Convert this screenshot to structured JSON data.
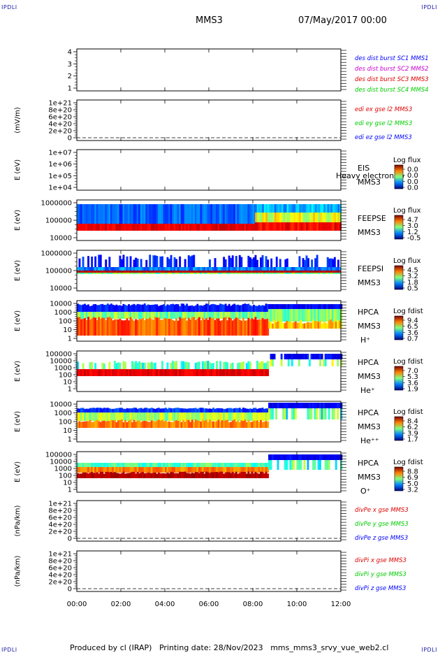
{
  "header": {
    "corner_label": "IPDLI",
    "title": "MMS3",
    "date": "07/May/2017 00:00"
  },
  "footer": {
    "produced_by": "Produced by cl (IRAP)",
    "printing_date": "Printing date: 28/Nov/2023",
    "script": "mms_mms3_srvy_vue_web2.cl"
  },
  "colors": {
    "mms1": "#0000ff",
    "mms2": "#cc00cc",
    "mms3": "#dd0000",
    "mms4": "#00cc00",
    "dashed_zero": "#000000"
  },
  "chart_data": {
    "type": "heatmap",
    "x_ticks": [
      "00:00",
      "02:00",
      "04:00",
      "06:00",
      "08:00",
      "10:00",
      "12:00"
    ],
    "xlim_hours": [
      0,
      12
    ],
    "panels": [
      {
        "id": "des-dist",
        "ylabel": "",
        "ytick_labels": [
          "4",
          "3",
          "2",
          "1"
        ],
        "ylim": [
          0.5,
          4.5
        ],
        "legend": [
          {
            "text": "des dist burst SC1 MMS1",
            "color": "#0000ff"
          },
          {
            "text": "des dist burst SC2 MMS2",
            "color": "#cc00cc"
          },
          {
            "text": "des dist burst SC3 MMS3",
            "color": "#dd0000"
          },
          {
            "text": "des dist burst SC4 MMS4",
            "color": "#00cc00"
          }
        ]
      },
      {
        "id": "edi",
        "ylabel": "(mV/m)",
        "ytick_labels": [
          "1e+21",
          "8e+20",
          "6e+20",
          "4e+20",
          "2e+20",
          "0"
        ],
        "ylim": [
          0,
          1e+21
        ],
        "legend": [
          {
            "text": "edi ex gse l2 MMS3",
            "color": "#dd0000"
          },
          {
            "text": "edi ey gse l2 MMS3",
            "color": "#00cc00"
          },
          {
            "text": "edi ez gse l2 MMS3",
            "color": "#0000ff"
          }
        ]
      },
      {
        "id": "eis",
        "ylabel": "E (eV)",
        "ytick_labels": [
          "1e+07",
          "1e+06",
          "1e+05",
          "1e+04"
        ],
        "ylim": [
          10000,
          10000000
        ],
        "instrument": [
          "EIS",
          "MMS3"
        ],
        "overlay_text": "Heavy electron to",
        "colorbar": {
          "title": "Log flux",
          "ticks": [
            "0.0",
            "0.0",
            "0.0",
            "0.0"
          ]
        }
      },
      {
        "id": "feeps-e",
        "ylabel": "E (eV)",
        "ytick_labels": [
          "1000000",
          "100000",
          "10000"
        ],
        "ylim": [
          10000,
          1000000
        ],
        "instrument": [
          "FEEPSE",
          "MMS3"
        ],
        "colorbar": {
          "title": "Log flux",
          "ticks": [
            "4.7",
            "3.0",
            "1.2",
            "-0.5"
          ]
        }
      },
      {
        "id": "feeps-i",
        "ylabel": "E (eV)",
        "ytick_labels": [
          "1000000",
          "100000",
          "10000"
        ],
        "ylim": [
          10000,
          1000000
        ],
        "instrument": [
          "FEEPSI",
          "MMS3"
        ],
        "colorbar": {
          "title": "Log flux",
          "ticks": [
            "4.5",
            "3.2",
            "1.8",
            "0.5"
          ]
        }
      },
      {
        "id": "hpca-h",
        "ylabel": "E (eV)",
        "ytick_labels": [
          "10000",
          "1000",
          "100",
          "10",
          "1"
        ],
        "ylim": [
          1,
          30000
        ],
        "instrument": [
          "HPCA",
          "MMS3",
          "H⁺"
        ],
        "colorbar": {
          "title": "Log fdist",
          "ticks": [
            "9.4",
            "6.5",
            "3.6",
            "0.7"
          ]
        }
      },
      {
        "id": "hpca-he",
        "ylabel": "E (eV)",
        "ytick_labels": [
          "100000",
          "10000",
          "1000",
          "100",
          "10",
          "1"
        ],
        "ylim": [
          1,
          100000
        ],
        "instrument": [
          "HPCA",
          "MMS3",
          "He⁺"
        ],
        "colorbar": {
          "title": "Log fdist",
          "ticks": [
            "7.0",
            "5.3",
            "3.6",
            "1.9"
          ]
        }
      },
      {
        "id": "hpca-hepp",
        "ylabel": "E (eV)",
        "ytick_labels": [
          "10000",
          "1000",
          "100",
          "10",
          "1"
        ],
        "ylim": [
          1,
          30000
        ],
        "instrument": [
          "HPCA",
          "MMS3",
          "He⁺⁺"
        ],
        "colorbar": {
          "title": "Log fdist",
          "ticks": [
            "8.4",
            "6.2",
            "3.9",
            "1.7"
          ]
        }
      },
      {
        "id": "hpca-o",
        "ylabel": "E (eV)",
        "ytick_labels": [
          "100000",
          "10000",
          "1000",
          "100",
          "10",
          "1"
        ],
        "ylim": [
          1,
          100000
        ],
        "instrument": [
          "HPCA",
          "MMS3",
          "O⁺"
        ],
        "colorbar": {
          "title": "Log fdist",
          "ticks": [
            "8.8",
            "6.9",
            "5.0",
            "3.2"
          ]
        }
      },
      {
        "id": "divpe",
        "ylabel": "(nPa/km)",
        "ytick_labels": [
          "1e+21",
          "8e+20",
          "6e+20",
          "4e+20",
          "2e+20",
          "0"
        ],
        "ylim": [
          0,
          1e+21
        ],
        "legend": [
          {
            "text": "divPe x gse MMS3",
            "color": "#dd0000"
          },
          {
            "text": "divPe y gse MMS3",
            "color": "#00cc00"
          },
          {
            "text": "divPe z gse MMS3",
            "color": "#0000ff"
          }
        ]
      },
      {
        "id": "divpi",
        "ylabel": "(nPa/km)",
        "ytick_labels": [
          "1e+21",
          "8e+20",
          "6e+20",
          "4e+20",
          "2e+20",
          "0"
        ],
        "ylim": [
          0,
          1e+21
        ],
        "legend": [
          {
            "text": "divPi x gse MMS3",
            "color": "#dd0000"
          },
          {
            "text": "divPi y gse MMS3",
            "color": "#00cc00"
          },
          {
            "text": "divPi z gse MMS3",
            "color": "#0000ff"
          }
        ]
      }
    ]
  }
}
